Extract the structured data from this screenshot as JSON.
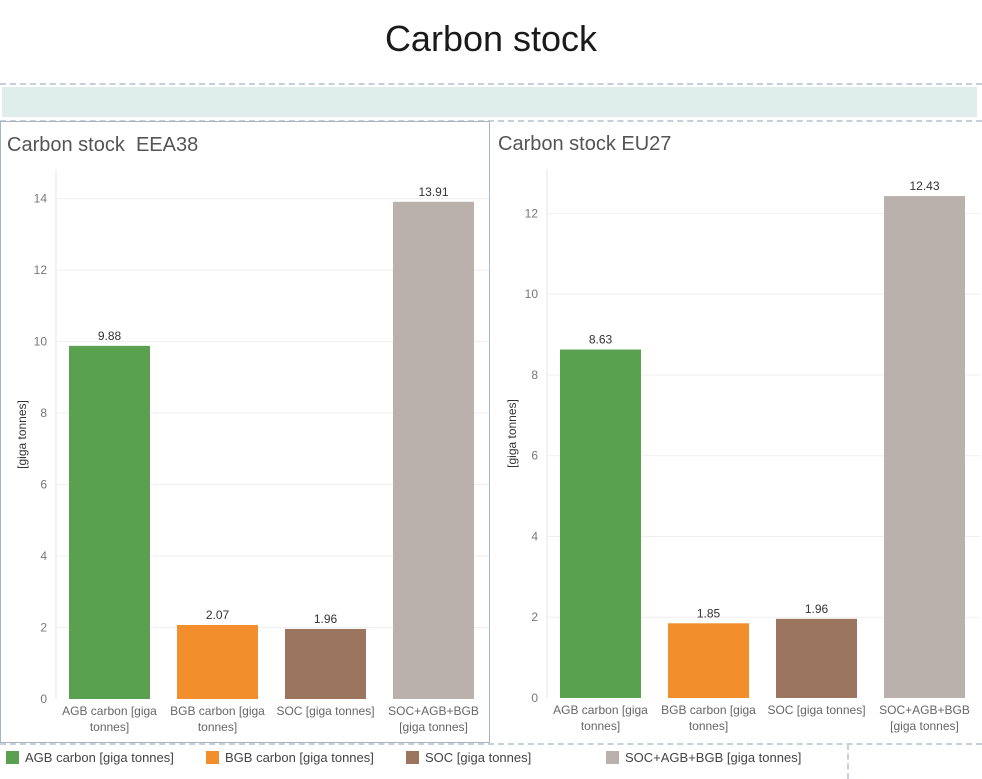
{
  "title": "Carbon stock",
  "legend": [
    {
      "label": "AGB carbon [giga tonnes]",
      "color": "#59a14f"
    },
    {
      "label": "BGB carbon [giga tonnes]",
      "color": "#f28e2b"
    },
    {
      "label": "SOC [giga tonnes]",
      "color": "#9c755f"
    },
    {
      "label": "SOC+AGB+BGB [giga tonnes]",
      "color": "#bab0ac"
    }
  ],
  "chart_data": [
    {
      "type": "bar",
      "title": "Carbon stock  EEA38",
      "ylabel": "[giga tonnes]",
      "xlabel": "",
      "ylim": [
        0,
        14.8
      ],
      "yticks": [
        0,
        2,
        4,
        6,
        8,
        10,
        12,
        14
      ],
      "grid": true,
      "categories": [
        [
          "AGB carbon [giga",
          "tonnes]"
        ],
        [
          "BGB carbon [giga",
          "tonnes]"
        ],
        [
          "SOC [giga tonnes]"
        ],
        [
          "SOC+AGB+BGB",
          "[giga tonnes]"
        ]
      ],
      "values": [
        9.88,
        2.07,
        1.96,
        13.91
      ],
      "value_labels": [
        "9.88",
        "2.07",
        "1.96",
        "13.91"
      ],
      "colors": [
        "#59a14f",
        "#f28e2b",
        "#9c755f",
        "#bab0ac"
      ]
    },
    {
      "type": "bar",
      "title": "Carbon stock EU27",
      "ylabel": "[giga tonnes]",
      "xlabel": "",
      "ylim": [
        0,
        13.1
      ],
      "yticks": [
        0,
        2,
        4,
        6,
        8,
        10,
        12
      ],
      "grid": true,
      "categories": [
        [
          "AGB carbon [giga",
          "tonnes]"
        ],
        [
          "BGB carbon [giga",
          "tonnes]"
        ],
        [
          "SOC [giga tonnes]"
        ],
        [
          "SOC+AGB+BGB",
          "[giga tonnes]"
        ]
      ],
      "values": [
        8.63,
        1.85,
        1.96,
        12.43
      ],
      "value_labels": [
        "8.63",
        "1.85",
        "1.96",
        "12.43"
      ],
      "colors": [
        "#59a14f",
        "#f28e2b",
        "#9c755f",
        "#bab0ac"
      ]
    }
  ]
}
